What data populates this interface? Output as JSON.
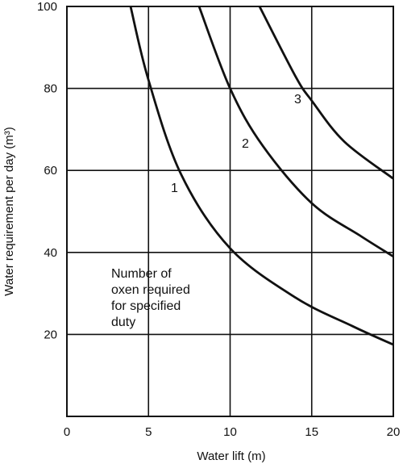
{
  "chart_data": {
    "type": "line",
    "title": "",
    "xlabel": "Water lift (m)",
    "ylabel": "Water requirement per day (m³)",
    "xlim": [
      0,
      20
    ],
    "ylim": [
      0,
      100
    ],
    "x_ticks": [
      "0",
      "5",
      "10",
      "15",
      "20"
    ],
    "y_ticks": [
      "20",
      "40",
      "60",
      "80",
      "100"
    ],
    "grid": true,
    "series": [
      {
        "name": "1",
        "x": [
          3.9,
          5,
          7,
          10,
          14,
          17.5,
          20
        ],
        "y": [
          100,
          82,
          59,
          41,
          29,
          22,
          17.5
        ]
      },
      {
        "name": "2",
        "x": [
          8.1,
          10,
          12,
          15,
          18,
          20
        ],
        "y": [
          100,
          80,
          66,
          52,
          44,
          39
        ]
      },
      {
        "name": "3",
        "x": [
          11.8,
          14,
          15,
          17,
          20
        ],
        "y": [
          100,
          83,
          77,
          67,
          58
        ]
      }
    ],
    "annotation": [
      "Number of",
      "oxen required",
      "for specified",
      "duty"
    ]
  }
}
